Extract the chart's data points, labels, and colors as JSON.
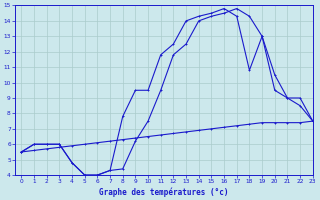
{
  "title": "Graphe des températures (°c)",
  "bg_color": "#cce8ec",
  "line_color": "#1a1acc",
  "grid_color": "#aacccc",
  "xlim": [
    -0.5,
    23
  ],
  "ylim": [
    4,
    15
  ],
  "xticks": [
    0,
    1,
    2,
    3,
    4,
    5,
    6,
    7,
    8,
    9,
    10,
    11,
    12,
    13,
    14,
    15,
    16,
    17,
    18,
    19,
    20,
    21,
    22,
    23
  ],
  "yticks": [
    4,
    5,
    6,
    7,
    8,
    9,
    10,
    11,
    12,
    13,
    14,
    15
  ],
  "line1_x": [
    0,
    1,
    2,
    3,
    4,
    5,
    6,
    7,
    8,
    9,
    10,
    11,
    12,
    13,
    14,
    15,
    16,
    17,
    18,
    19,
    20,
    21,
    22,
    23
  ],
  "line1_y": [
    5.5,
    6.0,
    6.0,
    6.0,
    4.8,
    4.0,
    4.0,
    4.3,
    7.8,
    9.5,
    9.5,
    11.8,
    12.5,
    14.0,
    14.3,
    14.5,
    14.8,
    14.3,
    10.8,
    13.0,
    9.5,
    9.0,
    9.0,
    7.5
  ],
  "line2_x": [
    0,
    1,
    2,
    3,
    4,
    5,
    6,
    7,
    8,
    9,
    10,
    11,
    12,
    13,
    14,
    15,
    16,
    17,
    18,
    19,
    20,
    21,
    22,
    23
  ],
  "line2_y": [
    5.5,
    6.0,
    6.0,
    6.0,
    4.8,
    4.0,
    4.0,
    4.3,
    4.4,
    6.2,
    7.5,
    9.5,
    11.8,
    12.5,
    14.0,
    14.3,
    14.5,
    14.8,
    14.3,
    13.0,
    10.5,
    9.0,
    8.5,
    7.5
  ],
  "line3_x": [
    0,
    1,
    2,
    3,
    4,
    5,
    6,
    7,
    8,
    9,
    10,
    11,
    12,
    13,
    14,
    15,
    16,
    17,
    18,
    19,
    20,
    21,
    22,
    23
  ],
  "line3_y": [
    5.5,
    5.6,
    5.7,
    5.8,
    5.9,
    6.0,
    6.1,
    6.2,
    6.3,
    6.4,
    6.5,
    6.6,
    6.7,
    6.8,
    6.9,
    7.0,
    7.1,
    7.2,
    7.3,
    7.4,
    7.4,
    7.4,
    7.4,
    7.5
  ]
}
